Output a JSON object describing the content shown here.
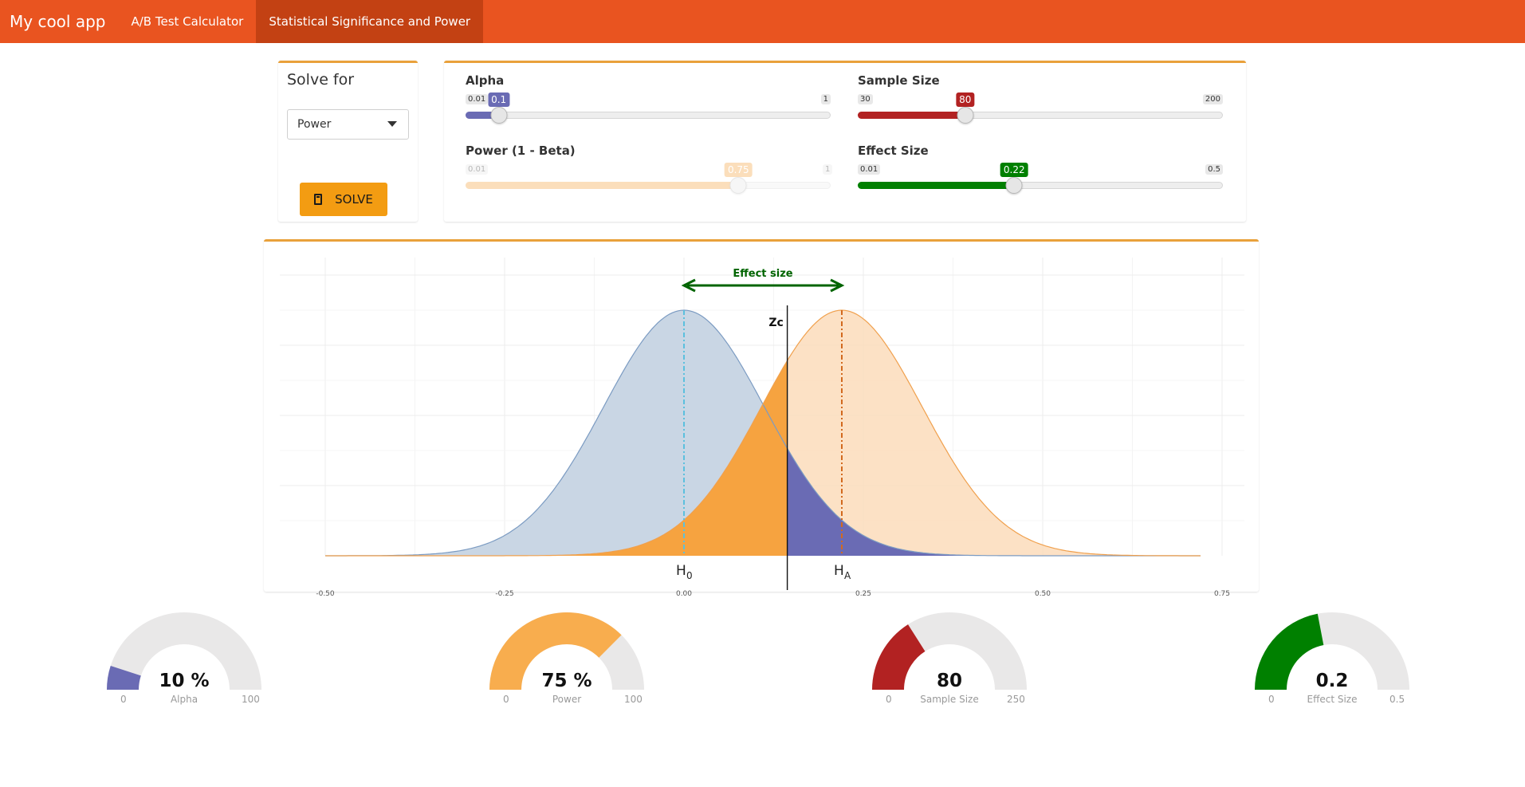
{
  "navbar": {
    "brand": "My cool app",
    "tabs": [
      {
        "label": "A/B Test Calculator",
        "active": false
      },
      {
        "label": "Statistical Significance and Power",
        "active": true
      }
    ],
    "color": "#e95420",
    "active_color": "#c34113"
  },
  "solve": {
    "title": "Solve for",
    "selected": "Power",
    "button_label": "SOLVE",
    "button_icon": "calculator-icon",
    "button_color": "#f39c12"
  },
  "sliders": {
    "alpha": {
      "label": "Alpha",
      "min": "0.01",
      "max": "1",
      "value": "0.1",
      "value_num": 0.1,
      "min_num": 0.01,
      "max_num": 1,
      "color": "#6a6bb4"
    },
    "sample_size": {
      "label": "Sample Size",
      "min": "30",
      "max": "200",
      "value": "80",
      "value_num": 80,
      "min_num": 30,
      "max_num": 200,
      "color": "#b22222"
    },
    "power": {
      "label": "Power (1 - Beta)",
      "min": "0.01",
      "max": "1",
      "value": "0.75",
      "value_num": 0.75,
      "min_num": 0.01,
      "max_num": 1,
      "color": "#f6a340",
      "disabled": true
    },
    "effect_size": {
      "label": "Effect Size",
      "min": "0.01",
      "max": "0.5",
      "value": "0.22",
      "value_num": 0.22,
      "min_num": 0.01,
      "max_num": 0.5,
      "color": "#008000"
    }
  },
  "chart_data": {
    "type": "area",
    "title": "",
    "effect_label": "Effect size",
    "zc_label": "Zc",
    "h0_label": "H",
    "h0_sub": "0",
    "ha_label": "H",
    "ha_sub": "A",
    "x_ticks": [
      "-0.50",
      "-0.25",
      "0.00",
      "0.25",
      "0.50",
      "0.75"
    ],
    "x_tick_values": [
      -0.5,
      -0.25,
      0.0,
      0.25,
      0.5,
      0.75
    ],
    "xlim": [
      -0.5,
      0.72
    ],
    "series": [
      {
        "mean": 0.0,
        "sd": 0.112,
        "color": "#8aa6c7"
      },
      {
        "mean": 0.22,
        "sd": 0.112,
        "color": "#f6a340"
      }
    ],
    "z_critical": 0.144,
    "colors": {
      "h0_fill": "#c9d6e4",
      "h0_line": "#7b9bc2",
      "ha_fill": "#fbdcbb",
      "ha_line": "#f0a04d",
      "beta_fill": "#f6a340",
      "alpha_fill": "#6a6bb4",
      "effect_arrow": "#006400",
      "h0_mean_line": "#5bc0de",
      "ha_mean_line": "#d2691e"
    }
  },
  "gauges": [
    {
      "value": "10 %",
      "label": "Alpha",
      "min": "0",
      "max": "100",
      "fraction": 0.1,
      "color": "#6a6bb4"
    },
    {
      "value": "75 %",
      "label": "Power",
      "min": "0",
      "max": "100",
      "fraction": 0.75,
      "color": "#f8ad4e"
    },
    {
      "value": "80",
      "label": "Sample Size",
      "min": "0",
      "max": "250",
      "fraction": 0.32,
      "color": "#b22222"
    },
    {
      "value": "0.2",
      "label": "Effect Size",
      "min": "0",
      "max": "0.5",
      "fraction": 0.44,
      "color": "#008000"
    }
  ]
}
